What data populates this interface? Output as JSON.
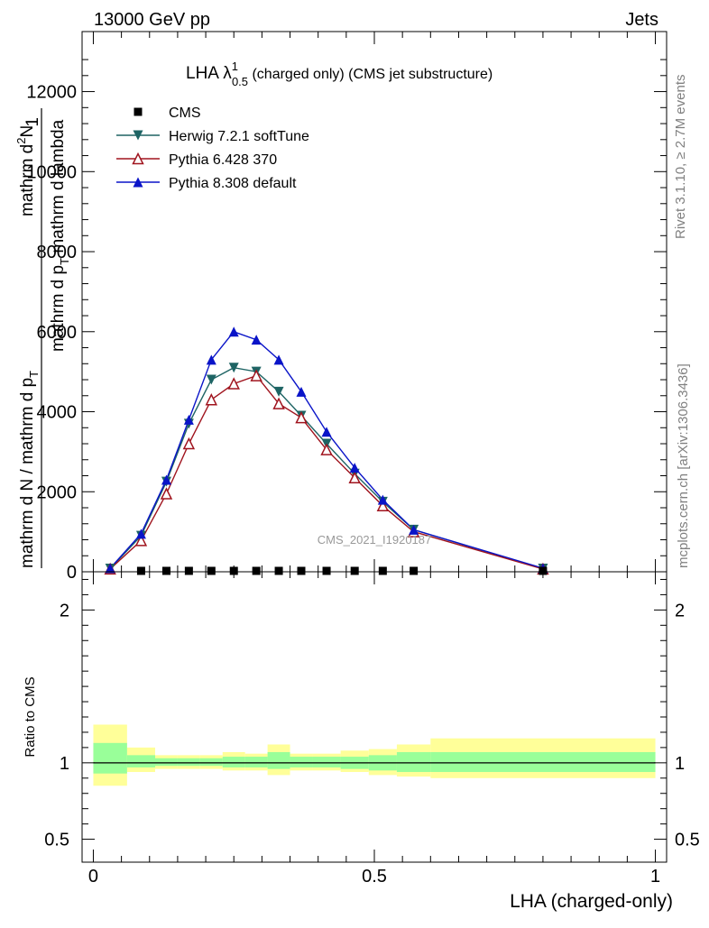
{
  "header": {
    "left": "13000 GeV pp",
    "right": "Jets"
  },
  "side_text": {
    "rivet": "Rivet 3.1.10, ≥ 2.7M events",
    "mcplots": "mcplots.cern.ch [arXiv:1306.3436]"
  },
  "watermark": "CMS_2021_I1920187",
  "main_plot": {
    "title_main": "LHA λ",
    "title_sup": "1",
    "title_sub": "0.5",
    "title_rest": " (charged only) (CMS jet substructure)",
    "ylabel_num_1": "mathrm d",
    "ylabel_num_2": "2",
    "ylabel_num_3": "N",
    "ylabel_den_1": "mathrm d p",
    "ylabel_den_2": "T",
    "ylabel_den_3": " mathrm d lambda",
    "ylabel_left_num": "1",
    "ylabel_left_den": "mathrm d N / mathrm d p",
    "ylabel_left_den_sub": "T"
  },
  "ratio_plot": {
    "ylabel": "Ratio to CMS",
    "xlabel": "LHA (charged-only)"
  },
  "colors": {
    "cms": "#000000",
    "herwig": "#1e6464",
    "pythia6": "#a0141e",
    "pythia8": "#0a14c8",
    "band_outer": "#ffff99",
    "band_inner": "#99ff99"
  },
  "chart_data": [
    {
      "type": "line",
      "x": [
        0.03,
        0.085,
        0.13,
        0.17,
        0.21,
        0.25,
        0.29,
        0.33,
        0.37,
        0.415,
        0.465,
        0.515,
        0.57,
        0.8
      ],
      "ylim": [
        0,
        13500
      ],
      "xlim": [
        -0.02,
        1.02
      ],
      "yticks": [
        0,
        2000,
        4000,
        6000,
        8000,
        10000,
        12000
      ],
      "ytick_labels": [
        "0",
        "2000",
        "4000",
        "6000",
        "8000",
        "10000",
        "12000"
      ],
      "series": [
        {
          "name": "CMS",
          "marker": "square",
          "values": [
            0,
            0,
            0,
            0,
            0,
            0,
            0,
            0,
            0,
            0,
            0,
            0,
            0,
            0
          ]
        },
        {
          "name": "Herwig 7.2.1 softTune",
          "marker": "triangle-down",
          "values": [
            80,
            900,
            2250,
            3700,
            4800,
            5100,
            5000,
            4500,
            3900,
            3200,
            2450,
            1750,
            1050,
            80
          ]
        },
        {
          "name": "Pythia 6.428 370",
          "marker": "triangle-up-open",
          "values": [
            70,
            780,
            1950,
            3200,
            4300,
            4700,
            4900,
            4200,
            3850,
            3050,
            2350,
            1650,
            1000,
            70
          ]
        },
        {
          "name": "Pythia 8.308 default",
          "marker": "triangle-up",
          "values": [
            90,
            950,
            2300,
            3800,
            5300,
            6000,
            5800,
            5300,
            4500,
            3500,
            2600,
            1800,
            1050,
            90
          ]
        }
      ]
    },
    {
      "type": "area",
      "xlim": [
        -0.02,
        1.02
      ],
      "ylim": [
        0.35,
        2.25
      ],
      "xticks": [
        0,
        0.5,
        1
      ],
      "xtick_labels": [
        "0",
        "0.5",
        "1"
      ],
      "yticks": [
        0.5,
        1,
        2
      ],
      "ytick_labels": [
        "0.5",
        "1",
        "2"
      ],
      "bins": [
        0,
        0.06,
        0.11,
        0.15,
        0.19,
        0.23,
        0.27,
        0.31,
        0.35,
        0.39,
        0.44,
        0.49,
        0.54,
        0.6,
        1.0
      ],
      "outer_lo": [
        0.85,
        0.94,
        0.96,
        0.96,
        0.96,
        0.95,
        0.95,
        0.92,
        0.95,
        0.95,
        0.94,
        0.92,
        0.91,
        0.9
      ],
      "outer_hi": [
        1.25,
        1.1,
        1.05,
        1.05,
        1.05,
        1.07,
        1.06,
        1.12,
        1.06,
        1.06,
        1.08,
        1.09,
        1.12,
        1.16
      ],
      "inner_lo": [
        0.93,
        0.97,
        0.98,
        0.98,
        0.98,
        0.97,
        0.97,
        0.96,
        0.97,
        0.97,
        0.96,
        0.95,
        0.94,
        0.94
      ],
      "inner_hi": [
        1.13,
        1.05,
        1.03,
        1.03,
        1.03,
        1.04,
        1.04,
        1.07,
        1.04,
        1.04,
        1.04,
        1.05,
        1.07,
        1.07
      ]
    }
  ]
}
